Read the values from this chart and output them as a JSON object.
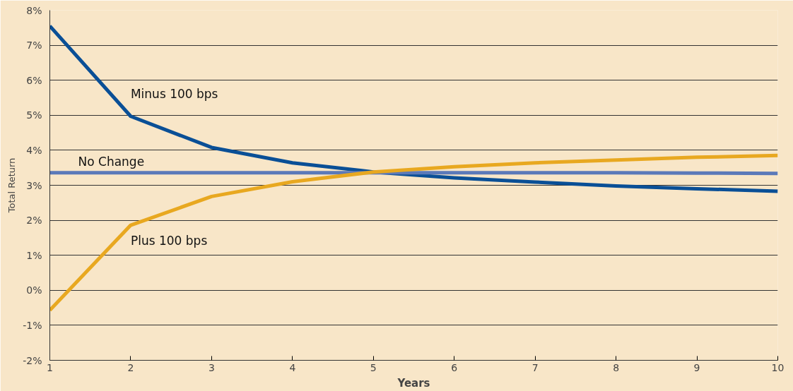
{
  "chart_data": {
    "type": "line",
    "xlabel": "Years",
    "ylabel": "Total Return",
    "x": [
      1,
      2,
      3,
      4,
      5,
      6,
      7,
      8,
      9,
      10
    ],
    "series": [
      {
        "name": "Minus 100 bps",
        "color": "#0a4f96",
        "values": [
          7.55,
          4.97,
          4.08,
          3.64,
          3.38,
          3.21,
          3.09,
          2.98,
          2.9,
          2.83
        ]
      },
      {
        "name": "No Change",
        "color": "#5b79b9",
        "values": [
          3.36,
          3.36,
          3.36,
          3.36,
          3.36,
          3.36,
          3.36,
          3.36,
          3.35,
          3.34
        ]
      },
      {
        "name": "Plus 100 bps",
        "color": "#e8a820",
        "values": [
          -0.57,
          1.86,
          2.68,
          3.1,
          3.38,
          3.53,
          3.64,
          3.72,
          3.8,
          3.85
        ]
      }
    ],
    "xlim": [
      1,
      10
    ],
    "xticks": [
      1,
      2,
      3,
      4,
      5,
      6,
      7,
      8,
      9,
      10
    ],
    "ylim": [
      -2,
      8
    ],
    "yticks": [
      {
        "value": -2,
        "label": "-2%"
      },
      {
        "value": -1,
        "label": "-1%"
      },
      {
        "value": 0,
        "label": "0%"
      },
      {
        "value": 1,
        "label": "1%"
      },
      {
        "value": 2,
        "label": "2%"
      },
      {
        "value": 3,
        "label": "3%"
      },
      {
        "value": 4,
        "label": "4%"
      },
      {
        "value": 5,
        "label": "5%"
      },
      {
        "value": 6,
        "label": "6%"
      },
      {
        "value": 7,
        "label": "7%"
      },
      {
        "value": 8,
        "label": "8%"
      }
    ],
    "grid": "y",
    "legend": false,
    "marker": "none",
    "line_style": "solid"
  }
}
